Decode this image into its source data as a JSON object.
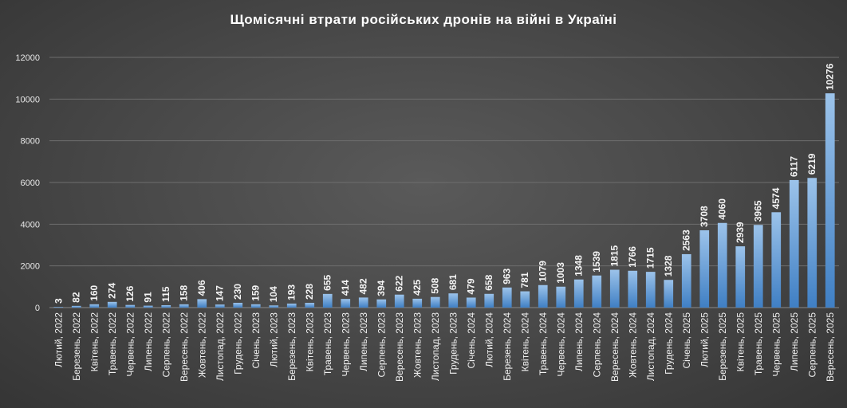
{
  "chart_data": {
    "type": "bar",
    "title": "Щомісячні втрати російських дронів на війні в Україні",
    "xlabel": "",
    "ylabel": "",
    "ylim": [
      0,
      12000
    ],
    "yticks": [
      0,
      2000,
      4000,
      6000,
      8000,
      10000,
      12000
    ],
    "grid": true,
    "legend": "none",
    "colors": {
      "bar_top": "#9cc3ea",
      "bar_bottom": "#3f7fc4",
      "background": "#4a4a4a"
    },
    "categories": [
      "Лютий, 2022",
      "Березень, 2022",
      "Квітень, 2022",
      "Травень, 2022",
      "Червень, 2022",
      "Липень, 2022",
      "Серпень, 2022",
      "Вересень, 2022",
      "Жовтень, 2022",
      "Листопад, 2022",
      "Грудень, 2022",
      "Січень, 2023",
      "Лютий, 2023",
      "Березень, 2023",
      "Квітень, 2023",
      "Травень, 2023",
      "Червень, 2023",
      "Липень, 2023",
      "Серпень, 2023",
      "Вересень, 2023",
      "Жовтень, 2023",
      "Листопад, 2023",
      "Грудень, 2023",
      "Січень, 2024",
      "Лютий, 2024",
      "Березень, 2024",
      "Квітень, 2024",
      "Травень, 2024",
      "Червень, 2024",
      "Липень, 2024",
      "Серпень, 2024",
      "Вересень, 2024",
      "Жовтень, 2024",
      "Листопад, 2024",
      "Грудень, 2024",
      "Січень, 2025",
      "Лютий, 2025",
      "Березень, 2025",
      "Квітень, 2025",
      "Травень, 2025",
      "Червень, 2025",
      "Липень, 2025",
      "Серпень, 2025",
      "Вересень, 2025"
    ],
    "values": [
      3,
      82,
      160,
      274,
      126,
      91,
      115,
      158,
      406,
      147,
      230,
      159,
      104,
      193,
      228,
      655,
      414,
      482,
      394,
      622,
      425,
      508,
      681,
      479,
      658,
      963,
      781,
      1079,
      1003,
      1348,
      1539,
      1815,
      1766,
      1715,
      1328,
      2563,
      3708,
      4060,
      2939,
      3965,
      4574,
      6117,
      6219,
      10276
    ]
  }
}
